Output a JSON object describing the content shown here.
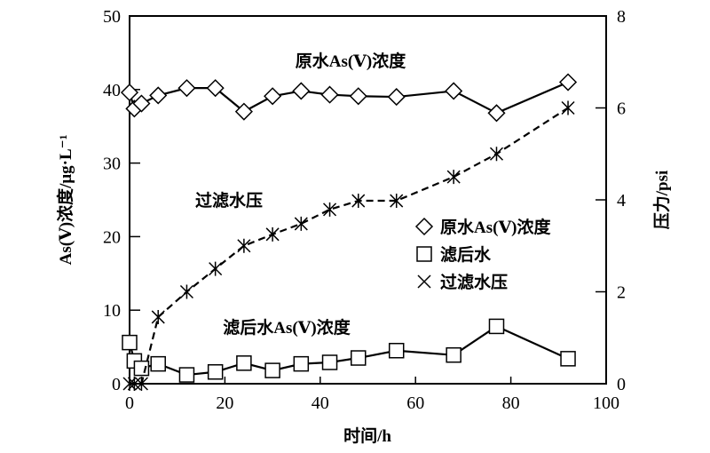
{
  "chart_data": {
    "type": "line",
    "xlabel": "时间/h",
    "ylabel_left": "As(Ⅴ)浓度/μg·L⁻¹",
    "ylabel_right": "压力/psi",
    "xlim": [
      0,
      100
    ],
    "ylim_left": [
      0,
      50
    ],
    "ylim_right": [
      0,
      8
    ],
    "x_ticks": [
      "0",
      "20",
      "40",
      "60",
      "80",
      "100"
    ],
    "y_left_ticks": [
      "0",
      "10",
      "20",
      "30",
      "40",
      "50"
    ],
    "y_right_ticks": [
      "0",
      "2",
      "4",
      "6",
      "8"
    ],
    "grid": false,
    "legend_placement": "center-right",
    "x": [
      0,
      1,
      2.5,
      6,
      12,
      18,
      24,
      30,
      36,
      42,
      48,
      56,
      68,
      77,
      92
    ],
    "series": [
      {
        "name": "原水As(Ⅴ)浓度",
        "axis": "left",
        "marker": "diamond",
        "line": "solid",
        "values": [
          39.6,
          37.4,
          38.1,
          39.2,
          40.2,
          40.2,
          37.0,
          39.1,
          39.8,
          39.3,
          39.1,
          39.0,
          39.8,
          36.8,
          41.0
        ]
      },
      {
        "name": "滤后水",
        "axis": "left",
        "marker": "square",
        "line": "solid",
        "values": [
          5.6,
          3.1,
          2.1,
          2.7,
          1.2,
          1.6,
          2.8,
          1.8,
          2.7,
          2.9,
          3.5,
          4.5,
          3.9,
          7.8,
          3.4
        ]
      },
      {
        "name": "过滤水压",
        "axis": "right",
        "marker": "asterisk",
        "line": "dashed",
        "values": [
          0,
          0,
          0,
          1.45,
          2.0,
          2.5,
          3.0,
          3.25,
          3.48,
          3.79,
          3.98,
          3.98,
          4.5,
          5.0,
          6.0
        ]
      }
    ],
    "annotations": [
      "原水As(Ⅴ)浓度",
      "过滤水压",
      "滤后水As(Ⅴ)浓度"
    ],
    "legend": [
      "原水As(Ⅴ)浓度",
      "滤后水",
      "过滤水压"
    ]
  }
}
